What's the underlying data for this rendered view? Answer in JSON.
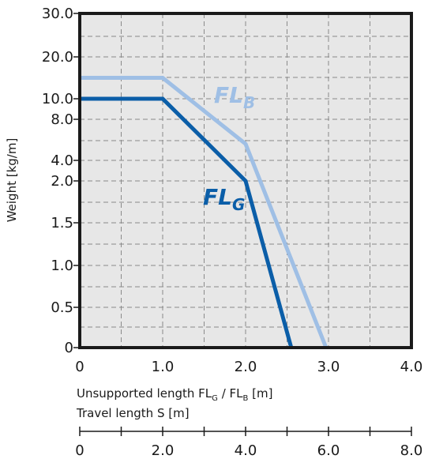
{
  "chart_data": {
    "type": "line",
    "ylabel": "Weight  [kg/m]",
    "xlabel": "Unsupported length FL",
    "xlabel_sub_g": "G",
    "xlabel_mid": " / FL",
    "xlabel_sub_b": "B",
    "xlabel_tail": " [m]",
    "x2label": "Travel length S  [m]",
    "xlim": [
      0,
      4.0
    ],
    "x_ticks": [
      0,
      1.0,
      2.0,
      3.0,
      4.0
    ],
    "x_tick_labels": [
      "0",
      "1.0",
      "2.0",
      "3.0",
      "4.0"
    ],
    "x2_ticks": [
      0,
      2.0,
      4.0,
      6.0,
      8.0
    ],
    "x2_tick_labels": [
      "0",
      "2.0",
      "4.0",
      "6.0",
      "8.0"
    ],
    "y_ticks": [
      0,
      0.5,
      1.0,
      1.5,
      2.0,
      4.0,
      8.0,
      10.0,
      20.0,
      30.0
    ],
    "y_tick_labels": [
      "0",
      "0.5",
      "1.0",
      "1.5",
      "2.0",
      "4.0",
      "8.0",
      "10.0",
      "20.0",
      "30.0"
    ],
    "series": [
      {
        "name": "FL",
        "subscript": "B",
        "color": "#9fbfe5",
        "x": [
          0,
          1.0,
          2.0,
          2.97
        ],
        "y": [
          15.0,
          15.0,
          5.6,
          0
        ]
      },
      {
        "name": "FL",
        "subscript": "G",
        "color": "#0b5ea8",
        "x": [
          0,
          1.0,
          2.0,
          2.55
        ],
        "y": [
          10.0,
          10.0,
          2.0,
          0
        ]
      }
    ]
  }
}
